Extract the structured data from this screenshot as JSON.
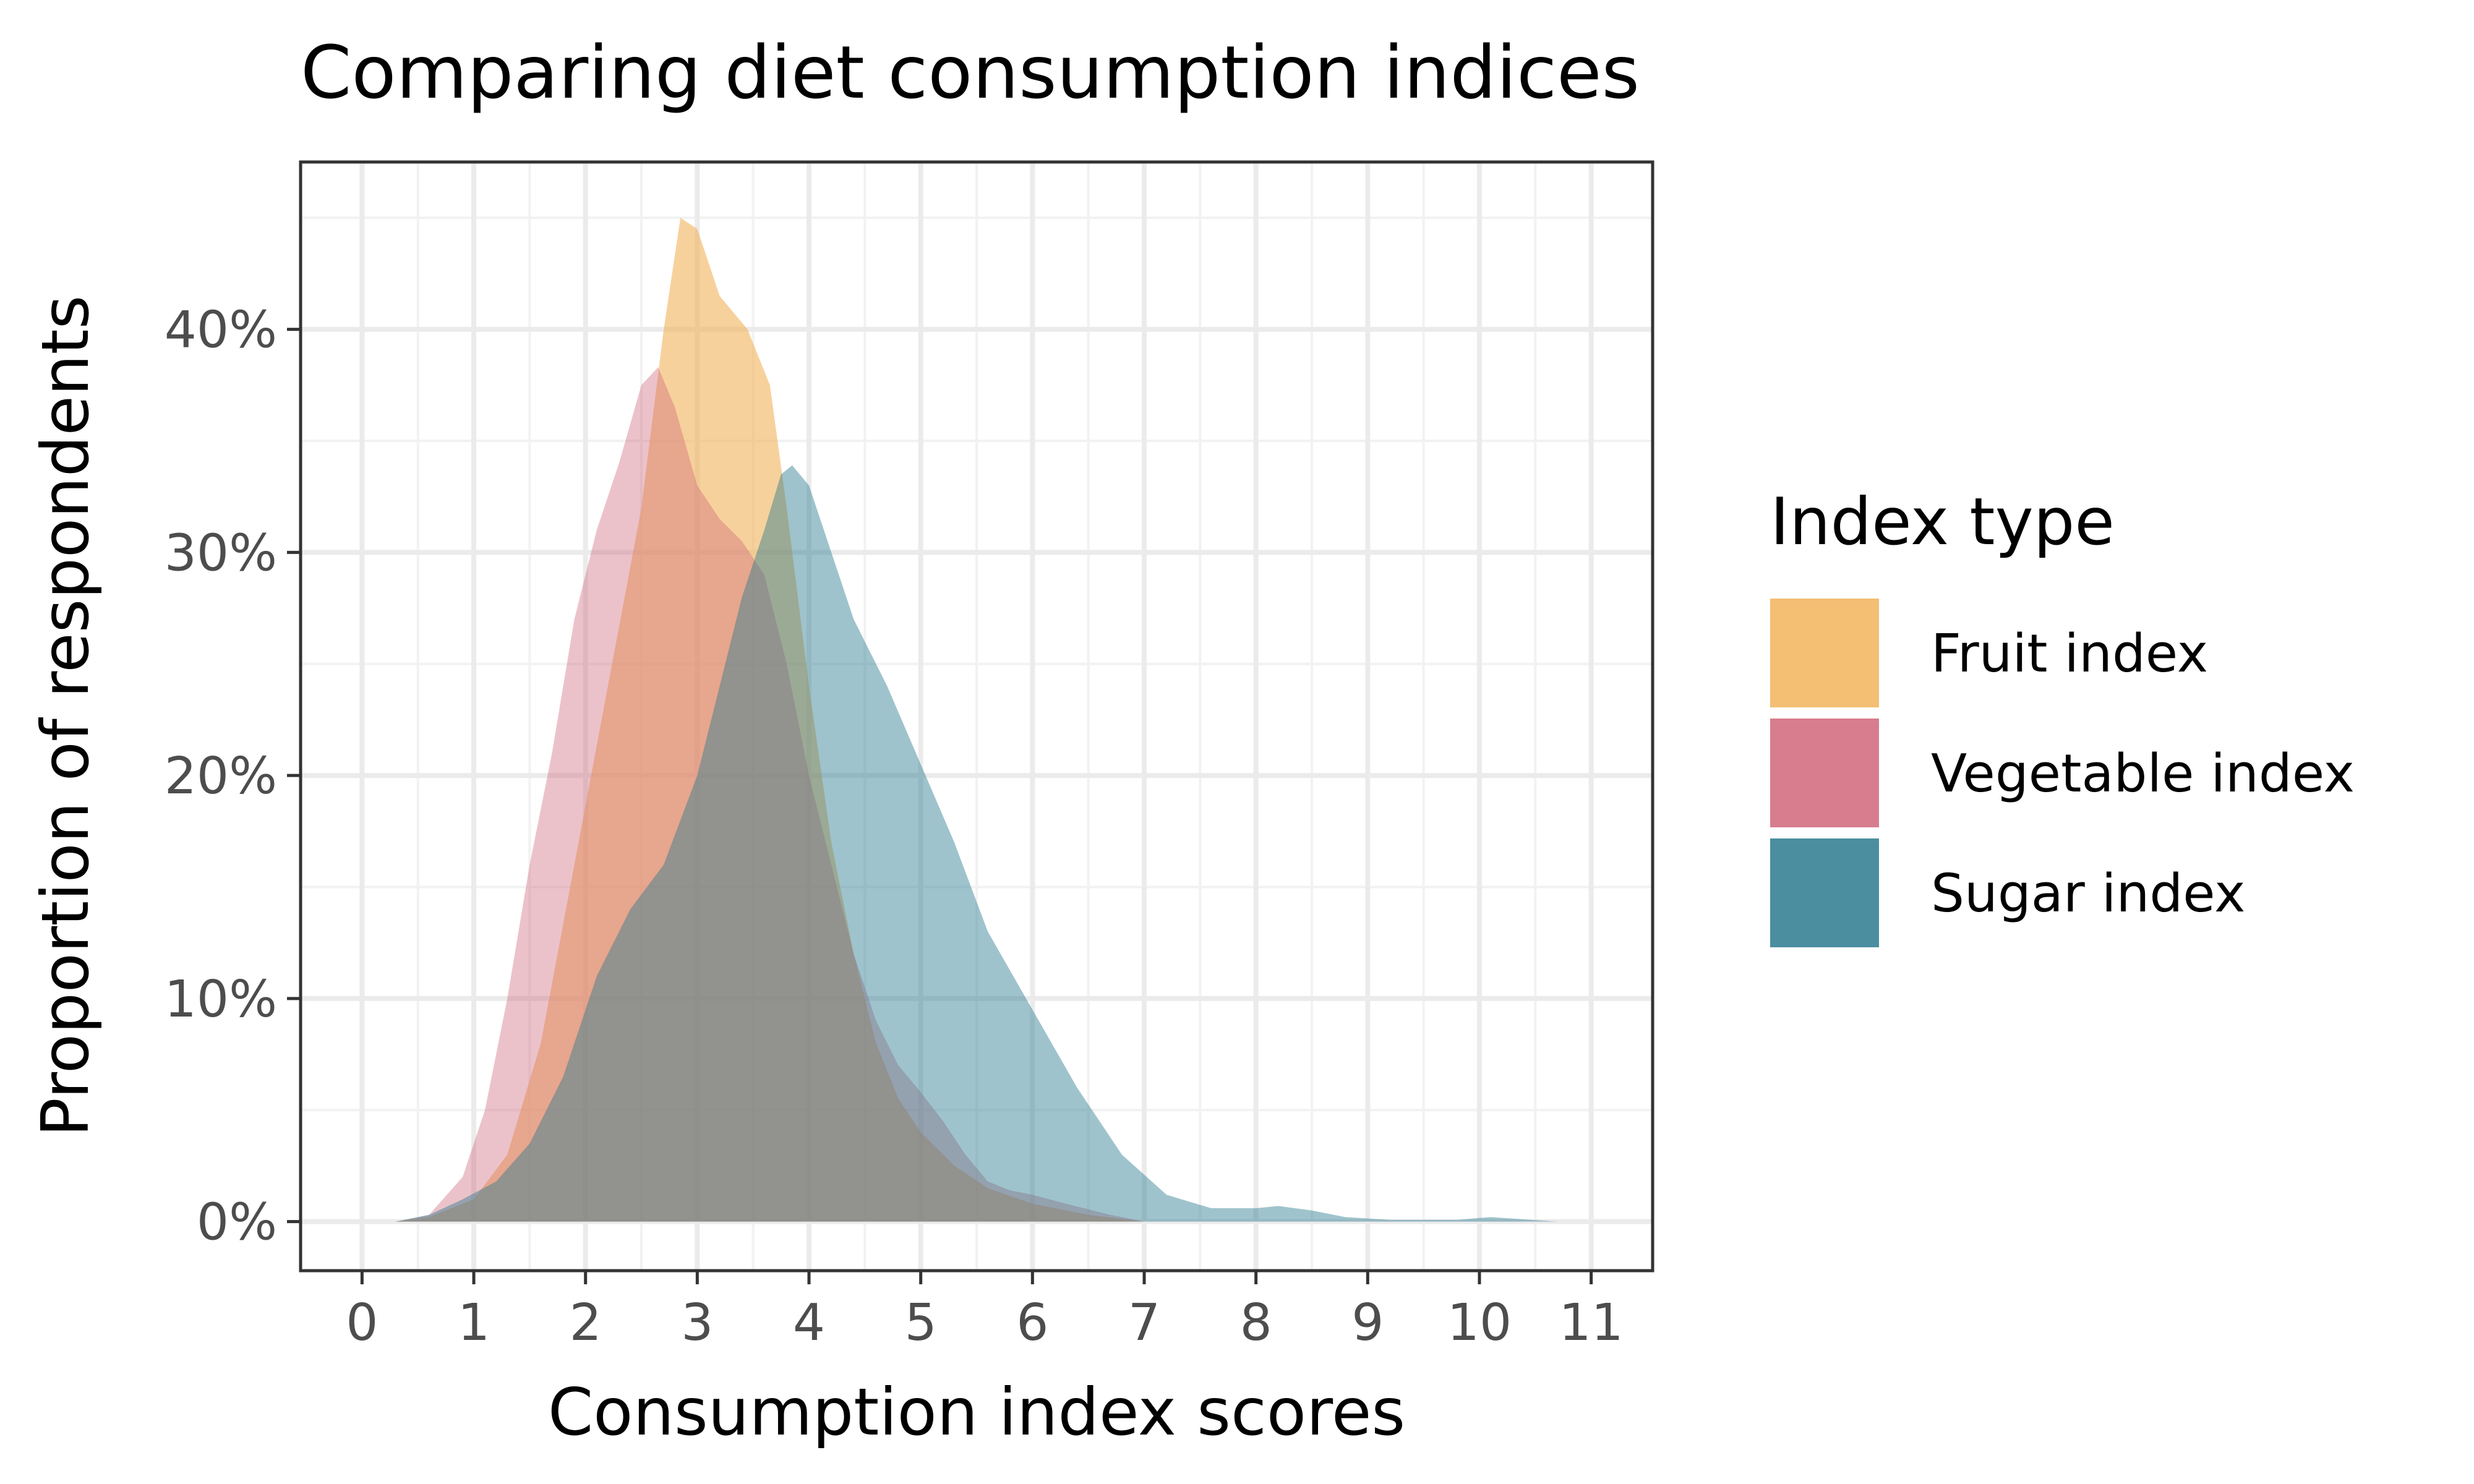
{
  "chart_data": {
    "type": "area",
    "title": "Comparing diet consumption indices",
    "xlabel": "Consumption index scores",
    "ylabel": "Proportion of respondents",
    "xlim": [
      -0.55,
      11.55
    ],
    "ylim": [
      -0.022,
      0.475
    ],
    "x_ticks": [
      0,
      1,
      2,
      3,
      4,
      5,
      6,
      7,
      8,
      9,
      10,
      11
    ],
    "x_tick_labels": [
      "0",
      "1",
      "2",
      "3",
      "4",
      "5",
      "6",
      "7",
      "8",
      "9",
      "10",
      "11"
    ],
    "y_ticks": [
      0,
      0.1,
      0.2,
      0.3,
      0.4
    ],
    "y_tick_labels": [
      "0%",
      "10%",
      "20%",
      "30%",
      "40%"
    ],
    "grid": true,
    "legend": {
      "title": "Index type",
      "position": "right"
    },
    "series": [
      {
        "name": "Fruit index",
        "color": "#F2B35A",
        "opacity": 0.6,
        "points": [
          [
            0.3,
            0
          ],
          [
            0.6,
            0.002
          ],
          [
            1.0,
            0.01
          ],
          [
            1.3,
            0.03
          ],
          [
            1.6,
            0.08
          ],
          [
            1.9,
            0.16
          ],
          [
            2.2,
            0.24
          ],
          [
            2.5,
            0.32
          ],
          [
            2.7,
            0.4
          ],
          [
            2.85,
            0.45
          ],
          [
            3.0,
            0.445
          ],
          [
            3.2,
            0.415
          ],
          [
            3.45,
            0.4
          ],
          [
            3.65,
            0.375
          ],
          [
            3.8,
            0.32
          ],
          [
            4.0,
            0.24
          ],
          [
            4.2,
            0.17
          ],
          [
            4.4,
            0.12
          ],
          [
            4.6,
            0.08
          ],
          [
            4.8,
            0.055
          ],
          [
            5.0,
            0.04
          ],
          [
            5.3,
            0.025
          ],
          [
            5.6,
            0.015
          ],
          [
            6.0,
            0.008
          ],
          [
            6.5,
            0.003
          ],
          [
            7.0,
            0
          ]
        ]
      },
      {
        "name": "Vegetable index",
        "color": "#D0667A",
        "opacity": 0.4,
        "points": [
          [
            0.3,
            0
          ],
          [
            0.6,
            0.003
          ],
          [
            0.9,
            0.02
          ],
          [
            1.1,
            0.05
          ],
          [
            1.3,
            0.1
          ],
          [
            1.5,
            0.16
          ],
          [
            1.7,
            0.21
          ],
          [
            1.9,
            0.27
          ],
          [
            2.1,
            0.31
          ],
          [
            2.3,
            0.34
          ],
          [
            2.5,
            0.375
          ],
          [
            2.65,
            0.383
          ],
          [
            2.8,
            0.365
          ],
          [
            3.0,
            0.33
          ],
          [
            3.2,
            0.315
          ],
          [
            3.4,
            0.305
          ],
          [
            3.6,
            0.29
          ],
          [
            3.8,
            0.25
          ],
          [
            4.0,
            0.2
          ],
          [
            4.2,
            0.16
          ],
          [
            4.4,
            0.12
          ],
          [
            4.6,
            0.09
          ],
          [
            4.8,
            0.07
          ],
          [
            5.0,
            0.058
          ],
          [
            5.2,
            0.045
          ],
          [
            5.4,
            0.03
          ],
          [
            5.6,
            0.018
          ],
          [
            5.8,
            0.014
          ],
          [
            6.0,
            0.012
          ],
          [
            6.3,
            0.008
          ],
          [
            6.7,
            0.003
          ],
          [
            7.0,
            0
          ]
        ]
      },
      {
        "name": "Sugar index",
        "color": "#2A7A8F",
        "opacity": 0.45,
        "points": [
          [
            0.3,
            0
          ],
          [
            0.6,
            0.003
          ],
          [
            0.9,
            0.01
          ],
          [
            1.2,
            0.018
          ],
          [
            1.5,
            0.035
          ],
          [
            1.8,
            0.065
          ],
          [
            2.1,
            0.11
          ],
          [
            2.4,
            0.14
          ],
          [
            2.7,
            0.16
          ],
          [
            3.0,
            0.2
          ],
          [
            3.2,
            0.24
          ],
          [
            3.4,
            0.28
          ],
          [
            3.6,
            0.31
          ],
          [
            3.75,
            0.335
          ],
          [
            3.85,
            0.339
          ],
          [
            4.0,
            0.33
          ],
          [
            4.2,
            0.3
          ],
          [
            4.4,
            0.27
          ],
          [
            4.7,
            0.24
          ],
          [
            5.0,
            0.205
          ],
          [
            5.3,
            0.17
          ],
          [
            5.6,
            0.13
          ],
          [
            6.0,
            0.095
          ],
          [
            6.4,
            0.06
          ],
          [
            6.8,
            0.03
          ],
          [
            7.2,
            0.012
          ],
          [
            7.6,
            0.006
          ],
          [
            8.0,
            0.006
          ],
          [
            8.2,
            0.007
          ],
          [
            8.5,
            0.005
          ],
          [
            8.8,
            0.002
          ],
          [
            9.2,
            0.0008
          ],
          [
            9.8,
            0.0008
          ],
          [
            10.1,
            0.002
          ],
          [
            10.4,
            0.001
          ],
          [
            10.7,
            0
          ]
        ]
      }
    ]
  }
}
